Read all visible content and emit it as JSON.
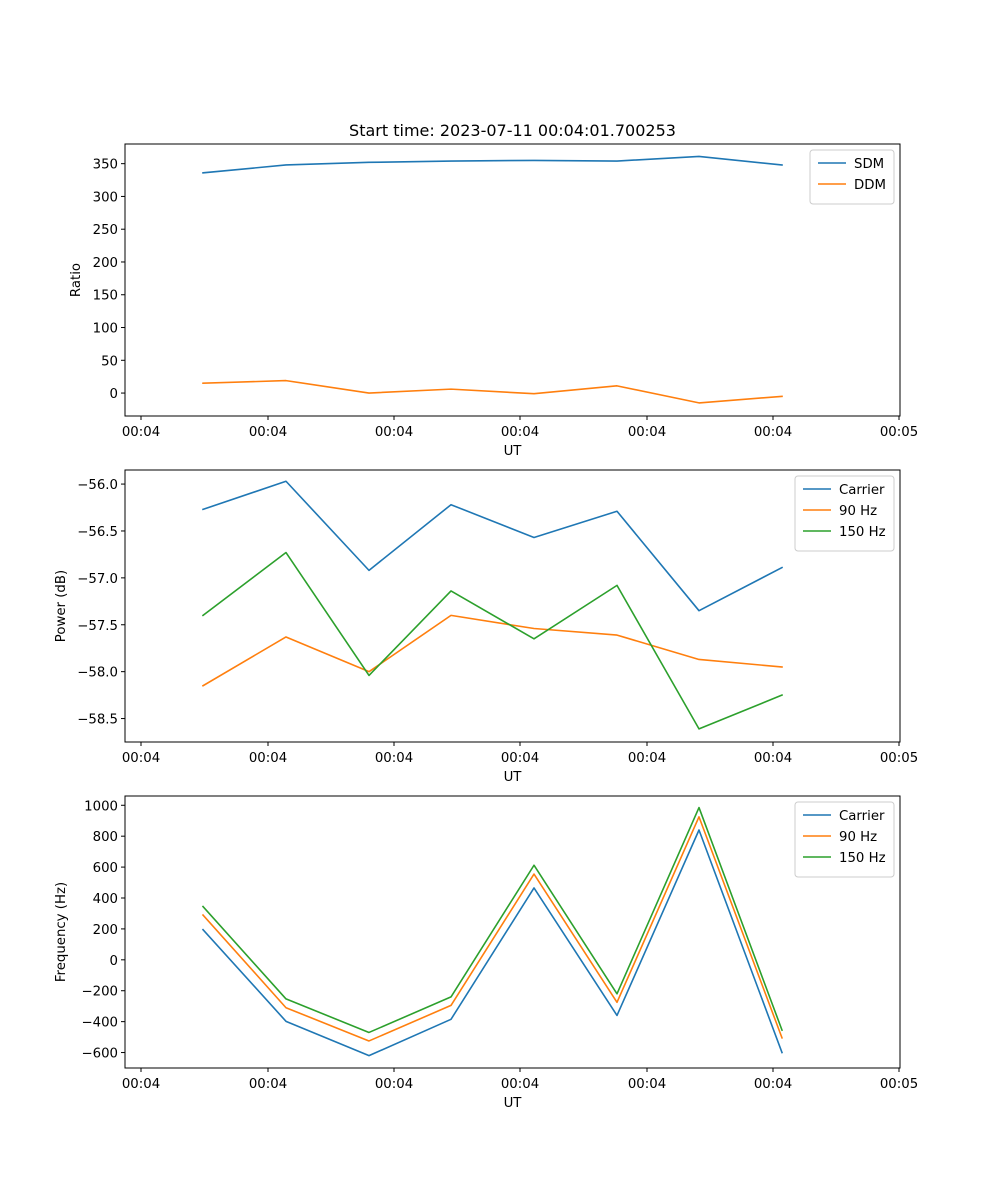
{
  "chart_data": [
    {
      "type": "line",
      "title": "Start time: 2023-07-11 00:04:01.700253",
      "xlabel": "UT",
      "ylabel": "Ratio",
      "x_tick_labels": [
        "00:04",
        "00:04",
        "00:04",
        "00:04",
        "00:04",
        "00:04",
        "00:05"
      ],
      "ylim": [
        -35,
        380
      ],
      "y_ticks": [
        0,
        50,
        100,
        150,
        200,
        250,
        300,
        350
      ],
      "y_tick_labels": [
        "0",
        "50",
        "100",
        "150",
        "200",
        "250",
        "300",
        "350"
      ],
      "legend_position": "upper right",
      "series": [
        {
          "name": "SDM",
          "color": "#1f77b4",
          "values": [
            336,
            348,
            352,
            354,
            355,
            354,
            361,
            348
          ]
        },
        {
          "name": "DDM",
          "color": "#ff7f0e",
          "values": [
            15,
            19,
            0,
            6,
            -1,
            11,
            -15,
            -5
          ]
        }
      ]
    },
    {
      "type": "line",
      "title": "",
      "xlabel": "UT",
      "ylabel": "Power (dB)",
      "x_tick_labels": [
        "00:04",
        "00:04",
        "00:04",
        "00:04",
        "00:04",
        "00:04",
        "00:05"
      ],
      "ylim": [
        -58.75,
        -55.85
      ],
      "y_ticks": [
        -58.5,
        -58.0,
        -57.5,
        -57.0,
        -56.5,
        -56.0
      ],
      "y_tick_labels": [
        "−58.5",
        "−58.0",
        "−57.5",
        "−57.0",
        "−56.5",
        "−56.0"
      ],
      "legend_position": "upper right",
      "series": [
        {
          "name": "Carrier",
          "color": "#1f77b4",
          "values": [
            -56.27,
            -55.97,
            -56.92,
            -56.22,
            -56.57,
            -56.29,
            -57.35,
            -56.89
          ]
        },
        {
          "name": "90 Hz",
          "color": "#ff7f0e",
          "values": [
            -58.15,
            -57.63,
            -58.0,
            -57.4,
            -57.54,
            -57.61,
            -57.87,
            -57.95
          ]
        },
        {
          "name": "150 Hz",
          "color": "#2ca02c",
          "values": [
            -57.4,
            -56.73,
            -58.04,
            -57.14,
            -57.65,
            -57.08,
            -58.61,
            -58.25
          ]
        }
      ]
    },
    {
      "type": "line",
      "title": "",
      "xlabel": "UT",
      "ylabel": "Frequency (Hz)",
      "x_tick_labels": [
        "00:04",
        "00:04",
        "00:04",
        "00:04",
        "00:04",
        "00:04",
        "00:05"
      ],
      "ylim": [
        -700,
        1060
      ],
      "y_ticks": [
        -600,
        -400,
        -200,
        0,
        200,
        400,
        600,
        800,
        1000
      ],
      "y_tick_labels": [
        "−600",
        "−400",
        "−200",
        "0",
        "200",
        "400",
        "600",
        "800",
        "1000"
      ],
      "legend_position": "upper right",
      "series": [
        {
          "name": "Carrier",
          "color": "#1f77b4",
          "values": [
            195,
            -398,
            -620,
            -385,
            465,
            -360,
            840,
            -600
          ]
        },
        {
          "name": "90 Hz",
          "color": "#ff7f0e",
          "values": [
            290,
            -310,
            -525,
            -295,
            555,
            -275,
            925,
            -505
          ]
        },
        {
          "name": "150 Hz",
          "color": "#2ca02c",
          "values": [
            345,
            -253,
            -470,
            -240,
            612,
            -220,
            985,
            -455
          ]
        }
      ]
    }
  ]
}
